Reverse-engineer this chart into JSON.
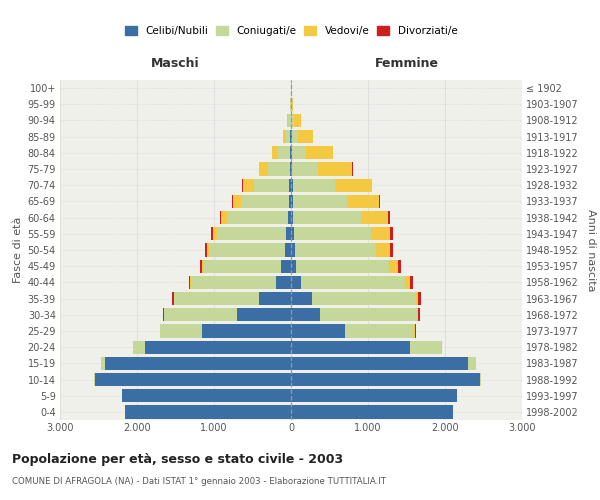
{
  "age_groups": [
    "0-4",
    "5-9",
    "10-14",
    "15-19",
    "20-24",
    "25-29",
    "30-34",
    "35-39",
    "40-44",
    "45-49",
    "50-54",
    "55-59",
    "60-64",
    "65-69",
    "70-74",
    "75-79",
    "80-84",
    "85-89",
    "90-94",
    "95-99",
    "100+"
  ],
  "birth_years": [
    "1998-2002",
    "1993-1997",
    "1988-1992",
    "1983-1987",
    "1978-1982",
    "1973-1977",
    "1968-1972",
    "1963-1967",
    "1958-1962",
    "1953-1957",
    "1948-1952",
    "1943-1947",
    "1938-1942",
    "1933-1937",
    "1928-1932",
    "1923-1927",
    "1918-1922",
    "1913-1917",
    "1908-1912",
    "1903-1907",
    "≤ 1902"
  ],
  "male": {
    "celibe": [
      2150,
      2200,
      2550,
      2420,
      1900,
      1150,
      700,
      420,
      200,
      130,
      80,
      60,
      45,
      30,
      25,
      15,
      15,
      10,
      5,
      0,
      0
    ],
    "coniugato": [
      0,
      0,
      10,
      50,
      150,
      550,
      950,
      1100,
      1100,
      1000,
      980,
      900,
      780,
      620,
      450,
      280,
      150,
      60,
      30,
      10,
      5
    ],
    "vedovo": [
      0,
      0,
      0,
      0,
      0,
      0,
      0,
      5,
      10,
      20,
      30,
      50,
      80,
      100,
      150,
      120,
      80,
      30,
      15,
      5,
      0
    ],
    "divorziato": [
      0,
      0,
      0,
      0,
      0,
      5,
      10,
      20,
      20,
      30,
      30,
      30,
      20,
      10,
      5,
      0,
      0,
      0,
      0,
      0,
      0
    ]
  },
  "female": {
    "nubile": [
      2100,
      2150,
      2450,
      2300,
      1550,
      700,
      380,
      270,
      130,
      70,
      55,
      40,
      30,
      25,
      20,
      15,
      15,
      10,
      5,
      0,
      0
    ],
    "coniugata": [
      0,
      0,
      20,
      100,
      400,
      900,
      1250,
      1350,
      1350,
      1200,
      1050,
      1000,
      880,
      700,
      550,
      330,
      180,
      80,
      40,
      15,
      5
    ],
    "vedova": [
      0,
      0,
      0,
      0,
      5,
      5,
      15,
      30,
      60,
      120,
      180,
      250,
      350,
      420,
      480,
      450,
      350,
      200,
      80,
      15,
      5
    ],
    "divorziata": [
      0,
      0,
      0,
      0,
      5,
      15,
      30,
      40,
      40,
      40,
      40,
      30,
      20,
      10,
      5,
      5,
      5,
      0,
      0,
      0,
      0
    ]
  },
  "colors": {
    "celibe": "#3a6ea5",
    "coniugato": "#c5d89a",
    "vedovo": "#f5c842",
    "divorziato": "#cc2020"
  },
  "xlim": 3000,
  "title": "Popolazione per età, sesso e stato civile - 2003",
  "subtitle": "COMUNE DI AFRAGOLA (NA) - Dati ISTAT 1° gennaio 2003 - Elaborazione TUTTITALIA.IT",
  "ylabel_left": "Fasce di età",
  "ylabel_right": "Anni di nascita",
  "header_left": "Maschi",
  "header_right": "Femmine",
  "bg_color": "#f0f0eb",
  "grid_color": "#cccccc",
  "legend_labels": [
    "Celibi/Nubili",
    "Coniugati/e",
    "Vedovi/e",
    "Divorziati/e"
  ]
}
